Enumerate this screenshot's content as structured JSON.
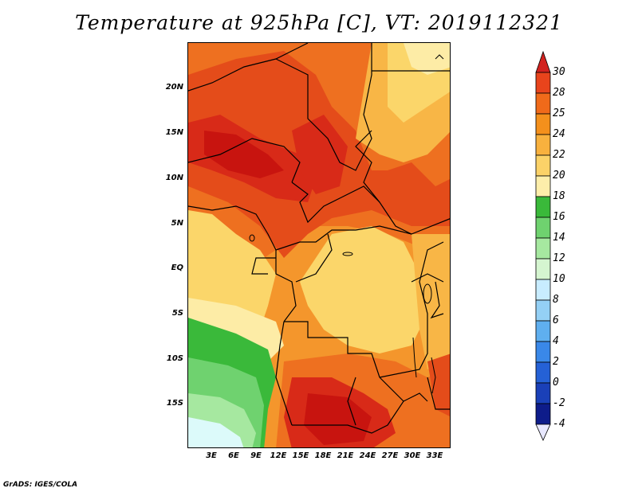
{
  "title": "Temperature at 925hPa [C], VT: 2019112321",
  "footer": "GrADS: IGES/COLA",
  "lat_labels": [
    "20N",
    "15N",
    "10N",
    "5N",
    "EQ",
    "5S",
    "10S",
    "15S"
  ],
  "lon_labels": [
    "3E",
    "6E",
    "9E",
    "12E",
    "15E",
    "18E",
    "21E",
    "24E",
    "27E",
    "30E",
    "33E"
  ],
  "colorbar": {
    "levels": [
      "30",
      "28",
      "25",
      "24",
      "22",
      "20",
      "18",
      "16",
      "14",
      "12",
      "10",
      "8",
      "6",
      "4",
      "2",
      "0",
      "-2",
      "-4"
    ],
    "colors": [
      "#d2221f",
      "#e8441c",
      "#f06a1a",
      "#f4901c",
      "#f8b13e",
      "#fbd268",
      "#fdeeaa",
      "#3ab93a",
      "#6fd26f",
      "#a6e8a0",
      "#d5f5d0",
      "#c8ecff",
      "#94d0f5",
      "#5fafef",
      "#3a88e8",
      "#2561d6",
      "#1a40b8",
      "#0e1c8a",
      "#e8e8ff"
    ]
  },
  "map_colors": {
    "hot": "#c8140f",
    "red": "#d82a18",
    "red_orange": "#e44c1a",
    "orange": "#ee7020",
    "light_orange": "#f4962c",
    "pale_orange": "#f8b646",
    "yellow": "#fbd66a",
    "pale_yellow": "#fdeca6",
    "green_dark": "#3ab93a",
    "green": "#6fd26f",
    "green_light": "#a6e8a0",
    "cyan_light": "#dcfafa"
  }
}
